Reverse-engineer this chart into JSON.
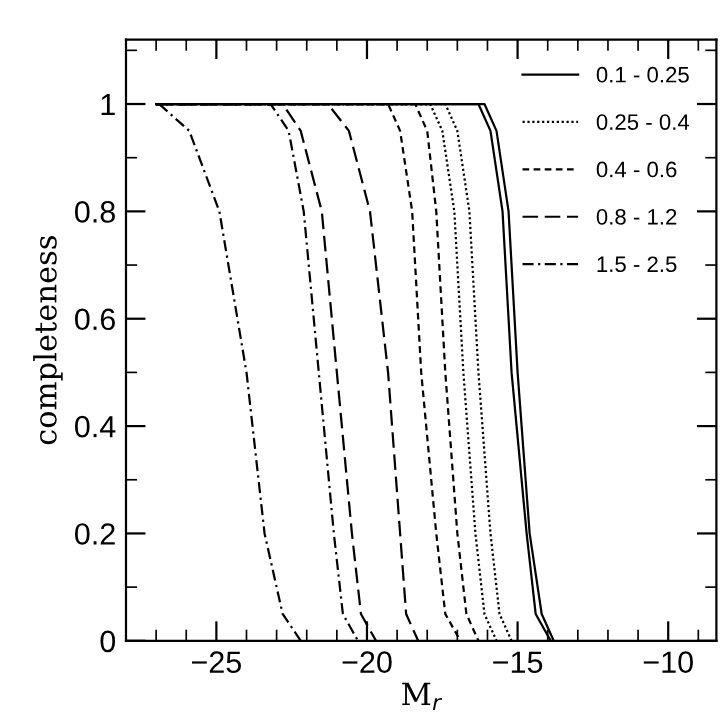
{
  "chart_data": {
    "type": "line",
    "xlabel": "M$_{r}$",
    "ylabel": "completeness",
    "xlim": [
      -28,
      -8.4
    ],
    "ylim": [
      0,
      1.12
    ],
    "xticks": [
      -25,
      -20,
      -15,
      -10
    ],
    "yticks": [
      0,
      0.2,
      0.4,
      0.6,
      0.8,
      1
    ],
    "legend": "top right",
    "grid": false,
    "series": [
      {
        "name": "0.1 - 0.25",
        "color": "#000000",
        "line_style": "solid",
        "x": [
          -27,
          -16.3,
          -15.9,
          -15.5,
          -15.2,
          -14.7,
          -14.4,
          -13.9
        ],
        "values": [
          1,
          1,
          0.95,
          0.8,
          0.5,
          0.2,
          0.05,
          0
        ]
      },
      {
        "color": "#000000",
        "line_style": "solid",
        "x": [
          -27,
          -16.1,
          -15.7,
          -15.3,
          -15.0,
          -14.6,
          -14.2,
          -13.8
        ],
        "values": [
          1,
          1,
          0.95,
          0.8,
          0.5,
          0.2,
          0.05,
          0
        ]
      },
      {
        "name": "0.25 - 0.4",
        "color": "#000000",
        "line_style": "dotted",
        "x": [
          -27,
          -17.9,
          -17.5,
          -17.1,
          -16.8,
          -16.4,
          -16.1,
          -15.7
        ],
        "values": [
          1,
          1,
          0.95,
          0.8,
          0.5,
          0.2,
          0.05,
          0
        ]
      },
      {
        "color": "#000000",
        "line_style": "dotted",
        "x": [
          -27,
          -17.4,
          -17.0,
          -16.6,
          -16.3,
          -15.9,
          -15.6,
          -15.2
        ],
        "values": [
          1,
          1,
          0.95,
          0.8,
          0.5,
          0.2,
          0.05,
          0
        ]
      },
      {
        "name": "0.4 - 0.6",
        "color": "#000000",
        "line_style": "dashed",
        "x": [
          -27,
          -19.3,
          -18.9,
          -18.5,
          -18.2,
          -17.7,
          -17.4,
          -16.9
        ],
        "values": [
          1,
          1,
          0.95,
          0.8,
          0.5,
          0.2,
          0.05,
          0
        ]
      },
      {
        "color": "#000000",
        "line_style": "dashed",
        "x": [
          -27,
          -18.4,
          -18.0,
          -17.7,
          -17.4,
          -17.0,
          -16.7,
          -16.3
        ],
        "values": [
          1,
          1,
          0.95,
          0.8,
          0.5,
          0.2,
          0.05,
          0
        ]
      },
      {
        "name": "0.8 - 1.2",
        "color": "#000000",
        "line_style": "longdashed",
        "x": [
          -27,
          -22.8,
          -22.2,
          -21.5,
          -21.0,
          -20.5,
          -20.2,
          -19.7
        ],
        "values": [
          1,
          1,
          0.95,
          0.8,
          0.5,
          0.2,
          0.05,
          0
        ]
      },
      {
        "color": "#000000",
        "line_style": "longdashed",
        "x": [
          -27,
          -21.3,
          -20.6,
          -19.9,
          -19.3,
          -18.9,
          -18.7,
          -18.3
        ],
        "values": [
          1,
          1,
          0.95,
          0.8,
          0.5,
          0.2,
          0.05,
          0
        ]
      },
      {
        "name": "1.5 - 2.5",
        "color": "#000000",
        "line_style": "dashdot",
        "x": [
          -26.9,
          -25.9,
          -24.9,
          -24.0,
          -23.4,
          -22.8,
          -22.2
        ],
        "values": [
          1,
          0.95,
          0.8,
          0.5,
          0.2,
          0.05,
          0
        ]
      },
      {
        "color": "#000000",
        "line_style": "dashdot",
        "x": [
          -27,
          -23.2,
          -22.6,
          -22.1,
          -21.6,
          -21.1,
          -20.8,
          -20.3
        ],
        "values": [
          1,
          1,
          0.95,
          0.8,
          0.5,
          0.2,
          0.05,
          0
        ]
      }
    ]
  }
}
